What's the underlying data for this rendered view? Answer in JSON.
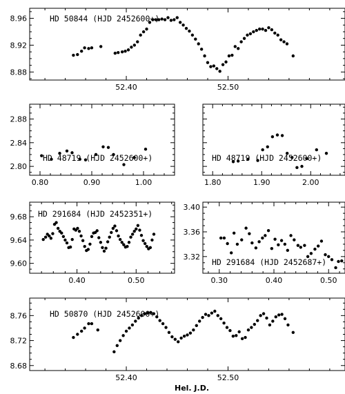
{
  "figure": {
    "xlabel": "Hel. J.D."
  },
  "chart_data": [
    {
      "type": "scatter",
      "label": "HD 50844 (HJD 2452600+)",
      "xticks": [
        "52.40",
        "52.50"
      ],
      "yticks": [
        "8.88",
        "8.92",
        "8.96"
      ],
      "xlim": [
        52.305,
        52.615
      ],
      "ylim": [
        8.975,
        8.868
      ],
      "x": [
        52.348,
        52.352,
        52.356,
        52.359,
        52.363,
        52.366,
        52.375,
        52.389,
        52.392,
        52.396,
        52.399,
        52.402,
        52.405,
        52.408,
        52.411,
        52.414,
        52.417,
        52.42,
        52.423,
        52.426,
        52.429,
        52.432,
        52.435,
        52.438,
        52.441,
        52.444,
        52.447,
        52.45,
        52.453,
        52.456,
        52.459,
        52.462,
        52.465,
        52.468,
        52.471,
        52.474,
        52.477,
        52.48,
        52.483,
        52.486,
        52.489,
        52.492,
        52.495,
        52.498,
        52.501,
        52.504,
        52.507,
        52.51,
        52.513,
        52.516,
        52.519,
        52.522,
        52.525,
        52.528,
        52.531,
        52.534,
        52.537,
        52.54,
        52.543,
        52.546,
        52.549,
        52.552,
        52.555,
        52.558,
        52.564
      ],
      "y": [
        8.905,
        8.906,
        8.911,
        8.916,
        8.915,
        8.916,
        8.918,
        8.908,
        8.909,
        8.91,
        8.911,
        8.913,
        8.917,
        8.92,
        8.925,
        8.935,
        8.94,
        8.944,
        8.954,
        8.958,
        8.958,
        8.958,
        8.959,
        8.958,
        8.961,
        8.957,
        8.958,
        8.961,
        8.954,
        8.95,
        8.945,
        8.941,
        8.935,
        8.929,
        8.922,
        8.914,
        8.904,
        8.894,
        8.888,
        8.889,
        8.885,
        8.881,
        8.891,
        8.895,
        8.904,
        8.905,
        8.918,
        8.915,
        8.925,
        8.93,
        8.935,
        8.937,
        8.94,
        8.942,
        8.944,
        8.944,
        8.942,
        8.946,
        8.943,
        8.938,
        8.935,
        8.928,
        8.925,
        8.922,
        8.904
      ]
    },
    {
      "type": "scatter",
      "label": "HD 48719 (HJD 2452600+)",
      "xticks": [
        "0.80",
        "0.90",
        "1.00"
      ],
      "yticks": [
        "2.80",
        "2.84",
        "2.88"
      ],
      "xlim": [
        0.78,
        1.06
      ],
      "ylim": [
        2.905,
        2.785
      ],
      "x": [
        0.803,
        0.822,
        0.838,
        0.852,
        0.862,
        0.877,
        0.888,
        0.908,
        0.922,
        0.932,
        0.942,
        0.962,
        0.982,
        1.004
      ],
      "y": [
        2.818,
        2.812,
        2.822,
        2.826,
        2.823,
        2.812,
        2.811,
        2.82,
        2.833,
        2.832,
        2.82,
        2.803,
        2.815,
        2.829
      ]
    },
    {
      "type": "scatter",
      "label": "HD 48719 (HJD 2452600+)",
      "xticks": [
        "1.80",
        "1.90",
        "2.00"
      ],
      "yticks": [],
      "xlim": [
        1.78,
        2.07
      ],
      "ylim": [
        2.905,
        2.785
      ],
      "x": [
        1.842,
        1.852,
        1.872,
        1.892,
        1.902,
        1.912,
        1.922,
        1.932,
        1.942,
        1.952,
        1.962,
        1.972,
        1.982,
        1.992,
        2.012,
        2.032
      ],
      "y": [
        2.808,
        2.809,
        2.812,
        2.81,
        2.828,
        2.833,
        2.85,
        2.853,
        2.852,
        2.822,
        2.815,
        2.798,
        2.8,
        2.813,
        2.828,
        2.822
      ]
    },
    {
      "type": "scatter",
      "label": "HD 291684  (HJD 2452351+)",
      "xticks": [
        "0.40",
        "0.50"
      ],
      "yticks": [
        "9.60",
        "9.64",
        "9.68"
      ],
      "xlim": [
        0.32,
        0.565
      ],
      "ylim": [
        9.705,
        9.583
      ],
      "x": [
        0.343,
        0.347,
        0.35,
        0.353,
        0.356,
        0.359,
        0.362,
        0.365,
        0.368,
        0.371,
        0.374,
        0.377,
        0.38,
        0.383,
        0.386,
        0.389,
        0.392,
        0.395,
        0.398,
        0.401,
        0.404,
        0.407,
        0.41,
        0.413,
        0.416,
        0.419,
        0.422,
        0.425,
        0.428,
        0.431,
        0.434,
        0.437,
        0.44,
        0.443,
        0.446,
        0.449,
        0.452,
        0.455,
        0.458,
        0.461,
        0.464,
        0.467,
        0.47,
        0.473,
        0.476,
        0.479,
        0.482,
        0.485,
        0.488,
        0.491,
        0.494,
        0.497,
        0.5,
        0.503,
        0.506,
        0.509,
        0.512,
        0.515,
        0.518,
        0.521,
        0.524,
        0.527,
        0.53
      ],
      "y": [
        9.641,
        9.645,
        9.65,
        9.647,
        9.643,
        9.651,
        9.667,
        9.67,
        9.66,
        9.655,
        9.652,
        9.646,
        9.64,
        9.635,
        9.627,
        9.628,
        9.641,
        9.659,
        9.657,
        9.66,
        9.655,
        9.647,
        9.639,
        9.629,
        9.622,
        9.624,
        9.633,
        9.646,
        9.652,
        9.653,
        9.656,
        9.644,
        9.636,
        9.627,
        9.621,
        9.626,
        9.637,
        9.645,
        9.653,
        9.66,
        9.664,
        9.656,
        9.647,
        9.641,
        9.636,
        9.632,
        9.628,
        9.629,
        9.636,
        9.645,
        9.65,
        9.655,
        9.659,
        9.665,
        9.657,
        9.648,
        9.639,
        9.634,
        9.629,
        9.625,
        9.627,
        9.64,
        9.65
      ]
    },
    {
      "type": "scatter",
      "label": "HD 291684  (HJD 2452687+)",
      "xticks": [
        "0.30",
        "0.40",
        "0.50"
      ],
      "yticks": [
        "3.32",
        "3.36",
        "3.40"
      ],
      "xlim": [
        0.27,
        0.53
      ],
      "ylim": [
        3.408,
        3.293
      ],
      "x": [
        0.303,
        0.309,
        0.315,
        0.322,
        0.327,
        0.333,
        0.341,
        0.349,
        0.355,
        0.36,
        0.367,
        0.373,
        0.379,
        0.384,
        0.39,
        0.396,
        0.402,
        0.408,
        0.414,
        0.42,
        0.425,
        0.431,
        0.437,
        0.444,
        0.449,
        0.456,
        0.462,
        0.468,
        0.475,
        0.481,
        0.487,
        0.494,
        0.5,
        0.506,
        0.513,
        0.518,
        0.524
      ],
      "y": [
        3.35,
        3.35,
        3.341,
        3.326,
        3.358,
        3.34,
        3.347,
        3.366,
        3.357,
        3.342,
        3.334,
        3.344,
        3.35,
        3.354,
        3.362,
        3.333,
        3.348,
        3.339,
        3.346,
        3.34,
        3.33,
        3.354,
        3.347,
        3.338,
        3.335,
        3.338,
        3.32,
        3.325,
        3.332,
        3.337,
        3.345,
        3.323,
        3.32,
        3.315,
        3.302,
        3.312,
        3.313
      ]
    },
    {
      "type": "scatter",
      "label": "HD 50870 (HJD 2452600+)",
      "xticks": [
        "52.40",
        "52.50"
      ],
      "yticks": [
        "8.68",
        "8.72",
        "8.76"
      ],
      "xlim": [
        52.305,
        52.615
      ],
      "ylim": [
        8.788,
        8.672
      ],
      "x": [
        52.348,
        52.352,
        52.356,
        52.359,
        52.363,
        52.366,
        52.372,
        52.388,
        52.391,
        52.394,
        52.397,
        52.4,
        52.403,
        52.406,
        52.409,
        52.412,
        52.415,
        52.418,
        52.421,
        52.424,
        52.427,
        52.43,
        52.433,
        52.436,
        52.439,
        52.442,
        52.445,
        52.448,
        52.451,
        52.454,
        52.457,
        52.46,
        52.463,
        52.466,
        52.469,
        52.472,
        52.475,
        52.478,
        52.481,
        52.484,
        52.487,
        52.49,
        52.493,
        52.496,
        52.499,
        52.502,
        52.505,
        52.508,
        52.511,
        52.514,
        52.517,
        52.52,
        52.523,
        52.526,
        52.529,
        52.532,
        52.535,
        52.538,
        52.541,
        52.544,
        52.547,
        52.55,
        52.553,
        52.556,
        52.559,
        52.564
      ],
      "y": [
        8.725,
        8.73,
        8.735,
        8.74,
        8.747,
        8.747,
        8.737,
        8.702,
        8.712,
        8.72,
        8.728,
        8.735,
        8.74,
        8.745,
        8.751,
        8.756,
        8.76,
        8.763,
        8.764,
        8.765,
        8.763,
        8.758,
        8.752,
        8.747,
        8.741,
        8.733,
        8.726,
        8.722,
        8.718,
        8.724,
        8.727,
        8.729,
        8.732,
        8.737,
        8.744,
        8.751,
        8.757,
        8.762,
        8.76,
        8.764,
        8.767,
        8.76,
        8.755,
        8.748,
        8.741,
        8.736,
        8.727,
        8.728,
        8.734,
        8.723,
        8.725,
        8.737,
        8.741,
        8.746,
        8.752,
        8.76,
        8.763,
        8.756,
        8.745,
        8.751,
        8.758,
        8.761,
        8.762,
        8.755,
        8.745,
        8.733
      ]
    }
  ]
}
